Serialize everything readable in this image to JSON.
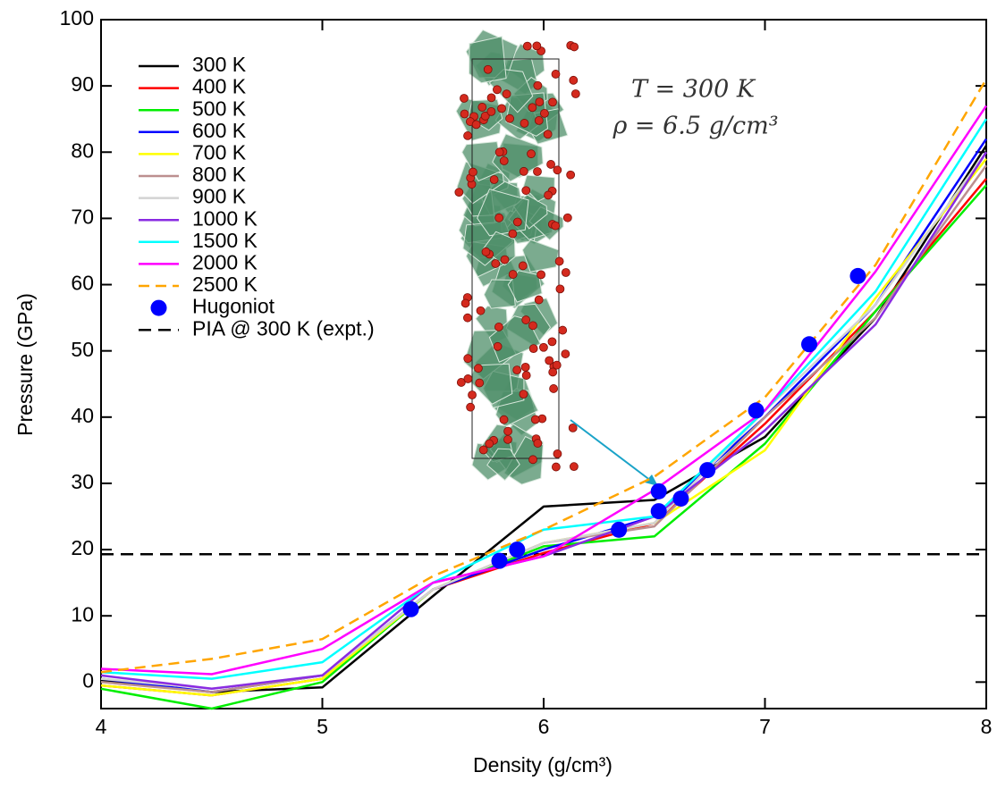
{
  "chart_data": {
    "type": "line",
    "x_label": "Density (g/cm³)",
    "y_label": "Pressure (GPa)",
    "annotations": [
      "T = 300 K",
      "ρ = 6.5 g/cm³"
    ],
    "xlim": [
      4,
      8
    ],
    "ylim": [
      -4,
      100
    ],
    "xticks": [
      4,
      5,
      6,
      7,
      8
    ],
    "yticks": [
      0,
      10,
      20,
      30,
      40,
      50,
      60,
      70,
      80,
      90,
      100
    ],
    "x": [
      4,
      4.5,
      5,
      5.5,
      6,
      6.5,
      7,
      7.5,
      8
    ],
    "series": [
      {
        "name": "300 K",
        "color": "#000000",
        "values": [
          0.2,
          -1.5,
          -0.8,
          13,
          26.5,
          27.5,
          37,
          55,
          81
        ]
      },
      {
        "name": "400 K",
        "color": "#ff0000",
        "values": [
          -0.5,
          -2,
          0.5,
          14,
          19.5,
          24,
          39,
          56,
          76
        ]
      },
      {
        "name": "500 K",
        "color": "#00ee00",
        "values": [
          -1,
          -4,
          0,
          14,
          20.5,
          22,
          36,
          56,
          75
        ]
      },
      {
        "name": "600 K",
        "color": "#0000ff",
        "values": [
          0.5,
          -1.5,
          1,
          14,
          20,
          25,
          40,
          57,
          82
        ]
      },
      {
        "name": "700 K",
        "color": "#ffff00",
        "values": [
          -0.5,
          -2,
          0.5,
          14,
          21,
          24,
          35,
          58,
          79
        ]
      },
      {
        "name": "800 K",
        "color": "#bc8f8f",
        "values": [
          0,
          -1.5,
          1,
          14,
          21,
          23.5,
          40,
          55,
          78
        ]
      },
      {
        "name": "900 K",
        "color": "#d3d3d3",
        "values": [
          0.5,
          -1,
          1,
          14,
          21,
          24,
          41,
          57,
          80
        ]
      },
      {
        "name": "1000 K",
        "color": "#8a2be2",
        "values": [
          1,
          -1,
          1,
          15,
          19,
          25,
          38,
          54,
          80
        ]
      },
      {
        "name": "1500 K",
        "color": "#00ffff",
        "values": [
          1.5,
          0.5,
          3,
          15,
          23,
          25,
          41,
          59,
          85
        ]
      },
      {
        "name": "2000 K",
        "color": "#ff00ff",
        "values": [
          2,
          1.2,
          5,
          15,
          19,
          29,
          41,
          62,
          87
        ]
      },
      {
        "name": "2500 K",
        "color": "#ffa500",
        "dashed": true,
        "values": [
          1.5,
          3.5,
          6.5,
          16,
          23,
          31,
          43,
          63,
          91
        ]
      }
    ],
    "hugoniot": {
      "name": "Hugoniot",
      "color": "#0000ff",
      "x": [
        5.4,
        5.8,
        5.88,
        6.34,
        6.52,
        6.52,
        6.62,
        6.74,
        6.96,
        7.2,
        7.42
      ],
      "y": [
        11,
        18.3,
        20,
        23,
        28.8,
        25.8,
        27.7,
        32,
        41,
        51,
        61.3
      ]
    },
    "reference_line": {
      "name": "PIA @ 300 K (expt.)",
      "color": "#000000",
      "value": 19.3
    }
  }
}
